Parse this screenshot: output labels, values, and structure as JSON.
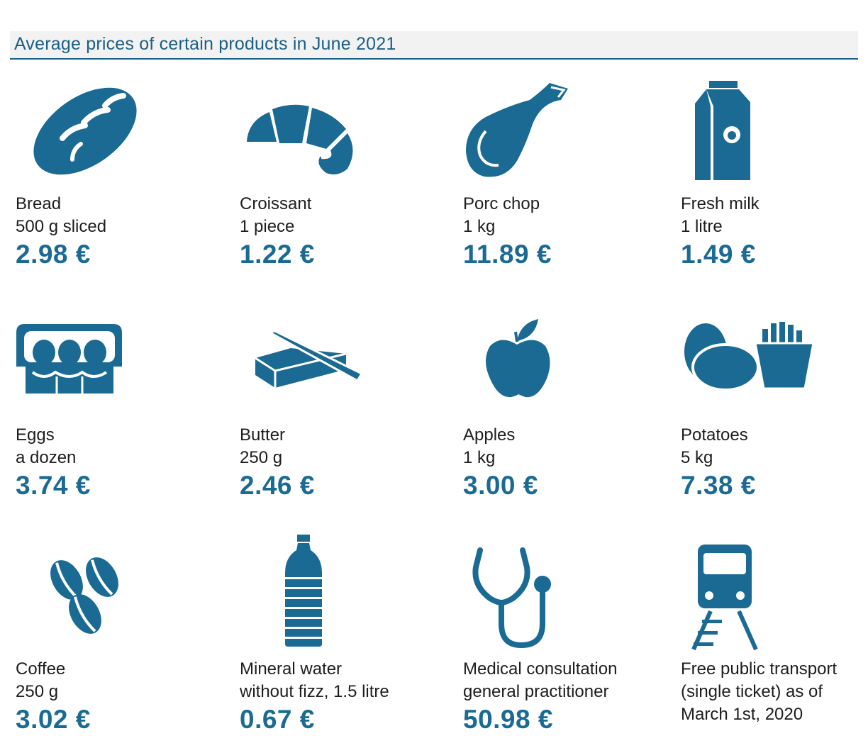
{
  "title": "Average prices of certain products in June 2021",
  "colors": {
    "icon": "#1a6a94",
    "price": "#1a6a94",
    "title": "#1a5f86",
    "rule": "#1a5f86"
  },
  "items": [
    {
      "icon": "bread-icon",
      "name": "Bread",
      "detail": "500 g sliced",
      "price": "2.98 €"
    },
    {
      "icon": "croissant-icon",
      "name": "Croissant",
      "detail": "1 piece",
      "price": "1.22 €"
    },
    {
      "icon": "pork-chop-icon",
      "name": "Porc chop",
      "detail": "1 kg",
      "price": "11.89 €"
    },
    {
      "icon": "milk-carton-icon",
      "name": "Fresh milk",
      "detail": "1 litre",
      "price": "1.49 €"
    },
    {
      "icon": "egg-carton-icon",
      "name": "Eggs",
      "detail": "a dozen",
      "price": "3.74 €"
    },
    {
      "icon": "butter-icon",
      "name": "Butter",
      "detail": "250 g",
      "price": "2.46 €"
    },
    {
      "icon": "apple-icon",
      "name": "Apples",
      "detail": "1 kg",
      "price": "3.00 €"
    },
    {
      "icon": "potatoes-fries-icon",
      "name": "Potatoes",
      "detail": "5 kg",
      "price": "7.38 €"
    },
    {
      "icon": "coffee-beans-icon",
      "name": "Coffee",
      "detail": "250 g",
      "price": "3.02 €"
    },
    {
      "icon": "water-bottle-icon",
      "name": "Mineral water",
      "detail": "without fizz, 1.5 litre",
      "price": "0.67 €"
    },
    {
      "icon": "stethoscope-icon",
      "name": "Medical consultation",
      "detail": "general practitioner",
      "price": "50.98 €"
    },
    {
      "icon": "train-icon",
      "name": "Free public transport",
      "detail": "(single ticket) as of",
      "extra": "March 1st, 2020"
    }
  ]
}
